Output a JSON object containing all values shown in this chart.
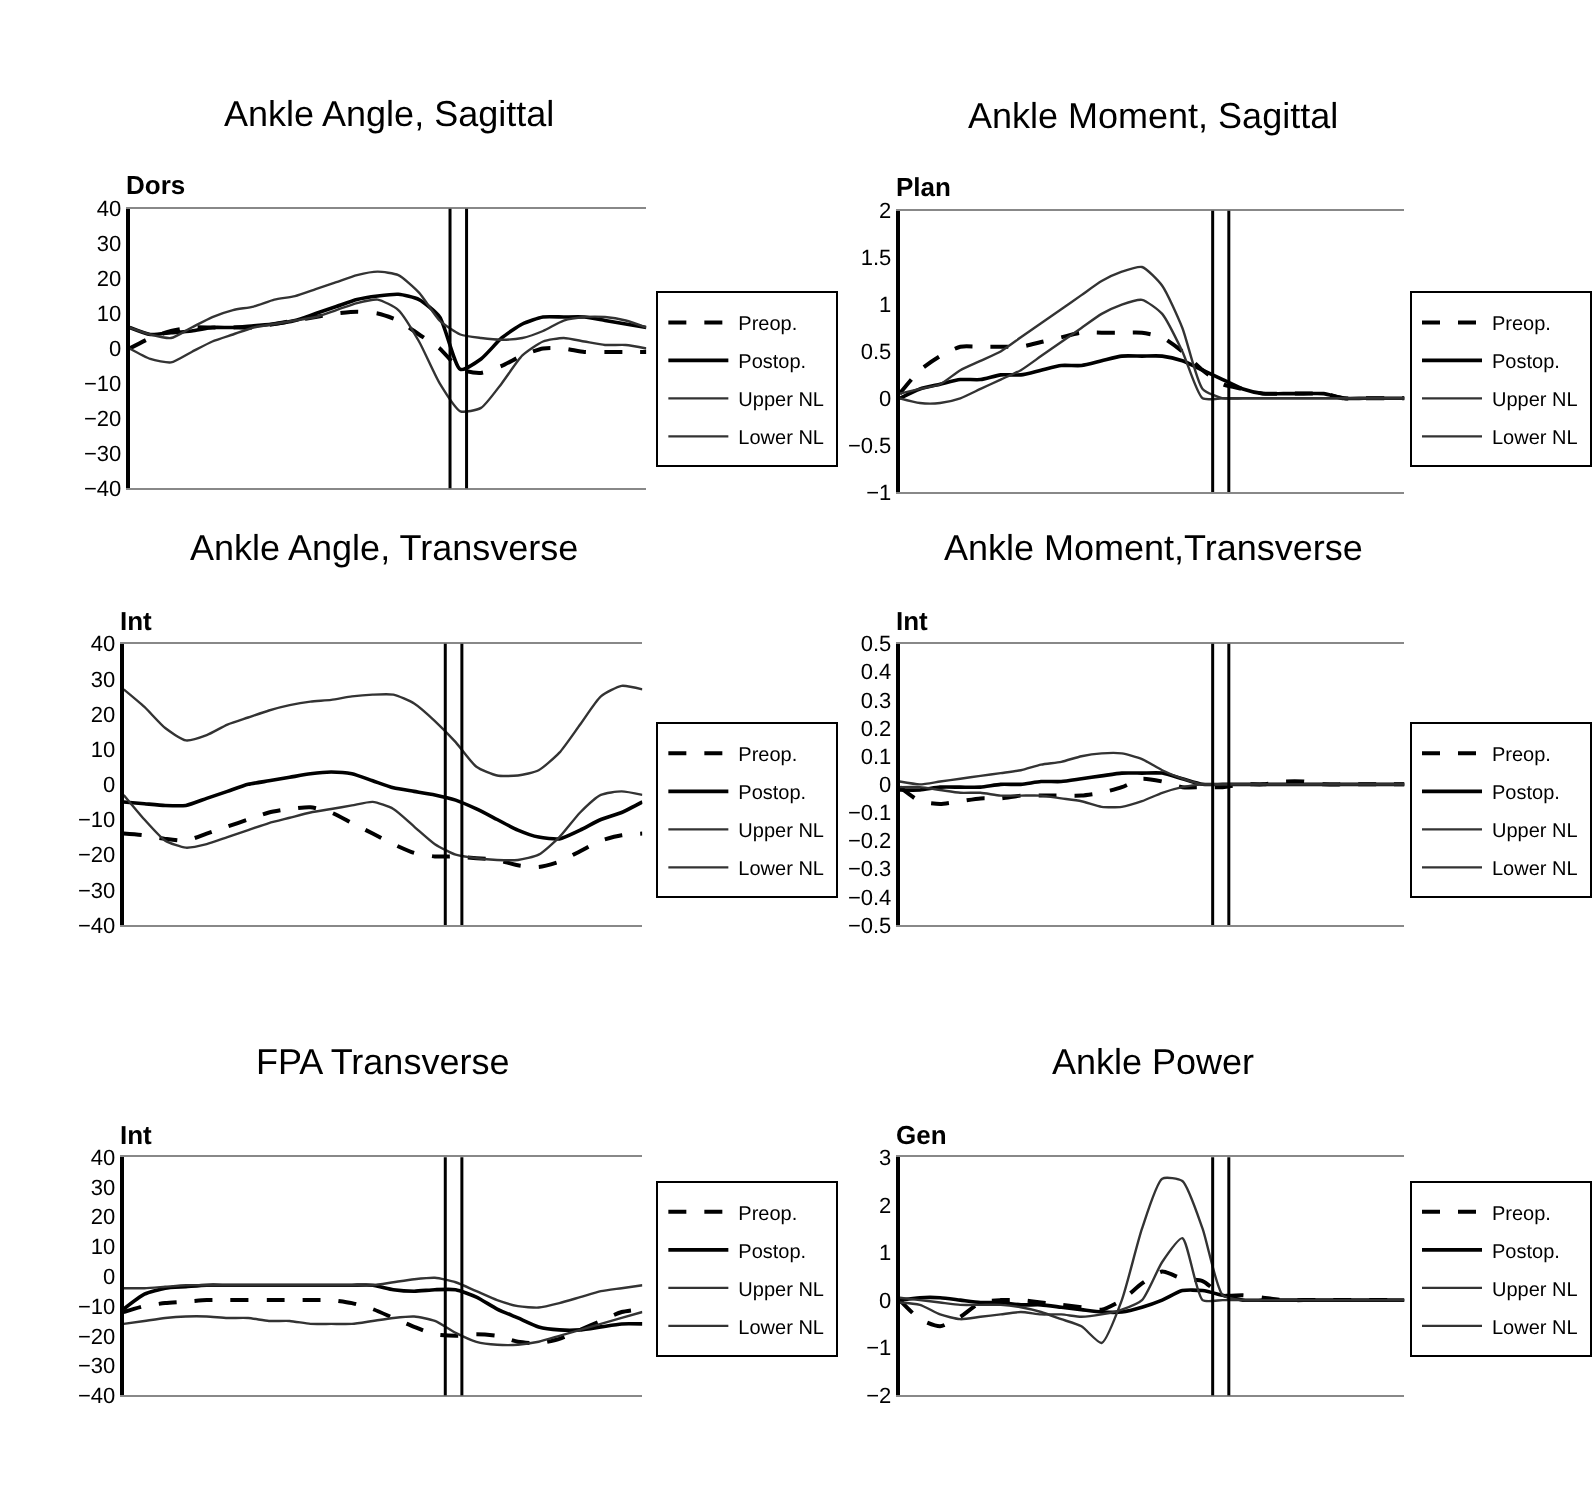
{
  "chart_data": [
    {
      "type": "line",
      "title": "Ankle Angle, Sagittal",
      "ylabel": "Dors",
      "categories": [
        null,
        null,
        null,
        null,
        null,
        null,
        null,
        null,
        null,
        null,
        null,
        null,
        null,
        null,
        null,
        null,
        null,
        null,
        null,
        null,
        null,
        null,
        null,
        null,
        null,
        null
      ],
      "ylim": [
        -40,
        40
      ],
      "yticks": [
        -40,
        -30,
        -20,
        -10,
        0,
        10,
        20,
        30,
        40
      ],
      "tick_labels": "y",
      "grid": false,
      "legend": "right",
      "series": [
        {
          "name": "Preop.",
          "color": "#000000",
          "line_style": "dashed",
          "values": [
            0,
            3,
            5,
            6,
            6,
            6,
            6,
            7,
            8,
            9,
            10,
            10.5,
            10,
            8,
            4,
            0,
            -6,
            -7,
            -5,
            -2,
            0,
            0,
            -1,
            -1,
            -1,
            -1
          ]
        },
        {
          "name": "Postop.",
          "color": "#000000",
          "line_style": "solid",
          "values": [
            6,
            4,
            4.5,
            5,
            6,
            6,
            6.5,
            7,
            8,
            10,
            12,
            14,
            15,
            15.5,
            14,
            9,
            -6,
            -3,
            3,
            7,
            9,
            9,
            9,
            8,
            7,
            6
          ]
        },
        {
          "name": "Upper NL",
          "color": "#333333",
          "line_style": "solid",
          "values": [
            6,
            4,
            3,
            6,
            9,
            11,
            12,
            14,
            15,
            17,
            19,
            21,
            22,
            21,
            16,
            8,
            4,
            3,
            2.5,
            3,
            5,
            8,
            9,
            9,
            8,
            6
          ]
        },
        {
          "name": "Lower NL",
          "color": "#333333",
          "line_style": "solid",
          "values": [
            0,
            -3,
            -4,
            -1,
            2,
            4,
            6,
            7,
            8,
            9,
            11,
            13,
            14,
            11,
            2,
            -10,
            -18,
            -17,
            -10,
            -2,
            2,
            3,
            2,
            1,
            1,
            0
          ]
        }
      ]
    },
    {
      "type": "line",
      "title": "Ankle Moment, Sagittal",
      "ylabel": "Plan",
      "categories": [
        null,
        null,
        null,
        null,
        null,
        null,
        null,
        null,
        null,
        null,
        null,
        null,
        null,
        null,
        null,
        null,
        null,
        null,
        null,
        null,
        null,
        null,
        null,
        null,
        null,
        null
      ],
      "ylim": [
        -1,
        2
      ],
      "yticks": [
        -1,
        -0.5,
        0,
        0.5,
        1,
        1.5,
        2
      ],
      "tick_labels": "y",
      "grid": false,
      "legend": "right",
      "series": [
        {
          "name": "Preop.",
          "color": "#000000",
          "line_style": "dashed",
          "values": [
            0.05,
            0.3,
            0.45,
            0.55,
            0.55,
            0.55,
            0.55,
            0.6,
            0.65,
            0.7,
            0.7,
            0.7,
            0.7,
            0.65,
            0.5,
            0.3,
            0.15,
            0.1,
            0.05,
            0.05,
            0.05,
            0.05,
            0,
            0,
            0,
            0
          ]
        },
        {
          "name": "Postop.",
          "color": "#000000",
          "line_style": "solid",
          "values": [
            0,
            0.1,
            0.15,
            0.2,
            0.2,
            0.25,
            0.25,
            0.3,
            0.35,
            0.35,
            0.4,
            0.45,
            0.45,
            0.45,
            0.4,
            0.3,
            0.2,
            0.1,
            0.05,
            0.05,
            0.05,
            0.05,
            0,
            0,
            0,
            0
          ]
        },
        {
          "name": "Upper NL",
          "color": "#333333",
          "line_style": "solid",
          "values": [
            0.05,
            0.1,
            0.15,
            0.3,
            0.4,
            0.5,
            0.65,
            0.8,
            0.95,
            1.1,
            1.25,
            1.35,
            1.4,
            1.2,
            0.75,
            0.1,
            0,
            0,
            0,
            0,
            0,
            0,
            0,
            0,
            0,
            0
          ]
        },
        {
          "name": "Lower NL",
          "color": "#333333",
          "line_style": "solid",
          "values": [
            0,
            -0.05,
            -0.05,
            0,
            0.1,
            0.2,
            0.3,
            0.45,
            0.6,
            0.75,
            0.9,
            1,
            1.05,
            0.9,
            0.5,
            0,
            0,
            0,
            0,
            0,
            0,
            0,
            0,
            0,
            0,
            0
          ]
        }
      ]
    },
    {
      "type": "line",
      "title": "Ankle Angle, Transverse",
      "ylabel": "Int",
      "categories": [
        null,
        null,
        null,
        null,
        null,
        null,
        null,
        null,
        null,
        null,
        null,
        null,
        null,
        null,
        null,
        null,
        null,
        null,
        null,
        null,
        null,
        null,
        null,
        null,
        null,
        null
      ],
      "ylim": [
        -40,
        40
      ],
      "yticks": [
        -40,
        -30,
        -20,
        -10,
        0,
        10,
        20,
        30,
        40
      ],
      "tick_labels": "y",
      "grid": false,
      "legend": "right",
      "series": [
        {
          "name": "Preop.",
          "color": "#000000",
          "line_style": "dashed",
          "values": [
            -14,
            -14.5,
            -15.5,
            -16,
            -14,
            -12,
            -10,
            -8,
            -7,
            -6.5,
            -8,
            -11,
            -14,
            -17,
            -19.5,
            -20.5,
            -20.5,
            -21,
            -21.5,
            -23,
            -23.5,
            -22,
            -19,
            -16,
            -14.5,
            -14
          ]
        },
        {
          "name": "Postop.",
          "color": "#000000",
          "line_style": "solid",
          "values": [
            -5,
            -5.5,
            -6,
            -6,
            -4,
            -2,
            0,
            1,
            2,
            3,
            3.5,
            3,
            1,
            -1,
            -2,
            -3,
            -4.5,
            -7,
            -10,
            -13,
            -15,
            -15.5,
            -13,
            -10,
            -8,
            -5
          ]
        },
        {
          "name": "Upper NL",
          "color": "#333333",
          "line_style": "solid",
          "values": [
            27,
            22,
            16,
            12.5,
            14,
            17,
            19,
            21,
            22.5,
            23.5,
            24,
            25,
            25.5,
            25.5,
            23,
            18,
            12,
            5,
            2.5,
            2.5,
            4,
            9,
            17,
            25,
            28,
            27
          ]
        },
        {
          "name": "Lower NL",
          "color": "#333333",
          "line_style": "solid",
          "values": [
            -3,
            -10,
            -16,
            -18,
            -17,
            -15,
            -13,
            -11,
            -9.5,
            -8,
            -7,
            -6,
            -5,
            -7,
            -12,
            -17,
            -20,
            -21,
            -21.5,
            -21.5,
            -20,
            -15,
            -8,
            -3,
            -2,
            -3
          ]
        }
      ]
    },
    {
      "type": "line",
      "title": "Ankle Moment,Transverse",
      "ylabel": "Int",
      "categories": [
        null,
        null,
        null,
        null,
        null,
        null,
        null,
        null,
        null,
        null,
        null,
        null,
        null,
        null,
        null,
        null,
        null,
        null,
        null,
        null,
        null,
        null,
        null,
        null,
        null,
        null
      ],
      "ylim": [
        -0.5,
        0.5
      ],
      "yticks": [
        -0.5,
        -0.4,
        -0.3,
        -0.2,
        -0.1,
        0,
        0.1,
        0.2,
        0.3,
        0.4,
        0.5
      ],
      "tick_labels": "y",
      "grid": false,
      "legend": "right",
      "series": [
        {
          "name": "Preop.",
          "color": "#000000",
          "line_style": "dashed",
          "values": [
            -0.01,
            -0.06,
            -0.07,
            -0.06,
            -0.05,
            -0.05,
            -0.04,
            -0.04,
            -0.04,
            -0.04,
            -0.03,
            -0.01,
            0.02,
            0.01,
            -0.01,
            -0.01,
            -0.01,
            0,
            0,
            0.01,
            0.01,
            0,
            0,
            0,
            0,
            0
          ]
        },
        {
          "name": "Postop.",
          "color": "#000000",
          "line_style": "solid",
          "values": [
            -0.02,
            -0.02,
            -0.01,
            -0.01,
            -0.01,
            0,
            0,
            0.01,
            0.01,
            0.02,
            0.03,
            0.04,
            0.04,
            0.04,
            0.02,
            0,
            0,
            0,
            0,
            0,
            0,
            0,
            0,
            0,
            0,
            0
          ]
        },
        {
          "name": "Upper NL",
          "color": "#333333",
          "line_style": "solid",
          "values": [
            0.01,
            0,
            0.01,
            0.02,
            0.03,
            0.04,
            0.05,
            0.07,
            0.08,
            0.1,
            0.11,
            0.11,
            0.09,
            0.05,
            0.02,
            0,
            0,
            0,
            0,
            0,
            0,
            0,
            0,
            0,
            0,
            0
          ]
        },
        {
          "name": "Lower NL",
          "color": "#333333",
          "line_style": "solid",
          "values": [
            -0.01,
            -0.01,
            -0.02,
            -0.03,
            -0.03,
            -0.04,
            -0.04,
            -0.04,
            -0.05,
            -0.06,
            -0.08,
            -0.08,
            -0.06,
            -0.03,
            -0.01,
            0,
            0,
            0,
            0,
            0,
            0,
            0,
            0,
            0,
            0,
            0
          ]
        }
      ]
    },
    {
      "type": "line",
      "title": "FPA Transverse",
      "ylabel": "Int",
      "categories": [
        null,
        null,
        null,
        null,
        null,
        null,
        null,
        null,
        null,
        null,
        null,
        null,
        null,
        null,
        null,
        null,
        null,
        null,
        null,
        null,
        null,
        null,
        null,
        null,
        null,
        null
      ],
      "ylim": [
        -40,
        40
      ],
      "yticks": [
        -40,
        -30,
        -20,
        -10,
        0,
        10,
        20,
        30,
        40
      ],
      "tick_labels": "y",
      "grid": false,
      "legend": "right",
      "series": [
        {
          "name": "Preop.",
          "color": "#000000",
          "line_style": "dashed",
          "values": [
            -12,
            -10,
            -9,
            -8.5,
            -8,
            -8,
            -8,
            -8,
            -8,
            -8,
            -8,
            -9,
            -11,
            -14,
            -17,
            -19.5,
            -20,
            -19.5,
            -20,
            -22,
            -22.5,
            -21,
            -18,
            -15,
            -12,
            -11
          ]
        },
        {
          "name": "Postop.",
          "color": "#000000",
          "line_style": "solid",
          "values": [
            -11,
            -6,
            -4,
            -3.5,
            -3,
            -3,
            -3,
            -3,
            -3,
            -3,
            -3,
            -3,
            -3,
            -4.5,
            -5,
            -4.5,
            -4.5,
            -7,
            -11,
            -14,
            -17,
            -18,
            -18,
            -17,
            -16,
            -16
          ]
        },
        {
          "name": "Upper NL",
          "color": "#333333",
          "line_style": "solid",
          "values": [
            -4,
            -4,
            -3.5,
            -3,
            -3,
            -3,
            -3,
            -3,
            -3,
            -3,
            -3,
            -3,
            -3,
            -2,
            -1,
            -0.5,
            -2,
            -5,
            -8,
            -10,
            -10.5,
            -9,
            -7,
            -5,
            -4,
            -3
          ]
        },
        {
          "name": "Lower NL",
          "color": "#333333",
          "line_style": "solid",
          "values": [
            -16,
            -15,
            -14,
            -13.5,
            -13.5,
            -14,
            -14,
            -15,
            -15,
            -16,
            -16,
            -16,
            -15,
            -14,
            -13.5,
            -15,
            -19,
            -22,
            -23,
            -23,
            -22,
            -20,
            -18,
            -16,
            -14,
            -12
          ]
        }
      ]
    },
    {
      "type": "line",
      "title": "Ankle Power",
      "ylabel": "Gen",
      "categories": [
        null,
        null,
        null,
        null,
        null,
        null,
        null,
        null,
        null,
        null,
        null,
        null,
        null,
        null,
        null,
        null,
        null,
        null,
        null,
        null,
        null,
        null,
        null,
        null,
        null,
        null
      ],
      "ylim": [
        -2,
        3
      ],
      "yticks": [
        -2,
        -1,
        0,
        1,
        2,
        3
      ],
      "tick_labels": "y",
      "grid": false,
      "legend": "right",
      "series": [
        {
          "name": "Preop.",
          "color": "#000000",
          "line_style": "dashed",
          "values": [
            0,
            -0.4,
            -0.55,
            -0.35,
            -0.05,
            0,
            0,
            -0.05,
            -0.1,
            -0.15,
            -0.2,
            0,
            0.35,
            0.6,
            0.45,
            0.4,
            0.1,
            0.1,
            0.05,
            0,
            0,
            0,
            0,
            0,
            0,
            0
          ]
        },
        {
          "name": "Postop.",
          "color": "#000000",
          "line_style": "solid",
          "values": [
            0,
            0.05,
            0.05,
            0,
            -0.05,
            -0.05,
            -0.1,
            -0.1,
            -0.15,
            -0.2,
            -0.25,
            -0.25,
            -0.15,
            0,
            0.2,
            0.2,
            0.1,
            0,
            0,
            0,
            0,
            0,
            0,
            0,
            0,
            0
          ]
        },
        {
          "name": "Upper NL",
          "color": "#333333",
          "line_style": "solid",
          "values": [
            0.05,
            0,
            -0.05,
            -0.1,
            -0.1,
            -0.1,
            -0.15,
            -0.25,
            -0.4,
            -0.55,
            -0.9,
            0,
            1.5,
            2.55,
            2.5,
            1.5,
            0.1,
            0,
            0,
            0,
            0,
            0,
            0,
            0,
            0,
            0
          ]
        },
        {
          "name": "Lower NL",
          "color": "#333333",
          "line_style": "solid",
          "values": [
            -0.05,
            -0.1,
            -0.3,
            -0.4,
            -0.35,
            -0.3,
            -0.25,
            -0.3,
            -0.3,
            -0.35,
            -0.3,
            -0.2,
            0,
            0.8,
            1.3,
            0,
            0,
            0,
            0,
            0,
            0,
            0,
            0,
            0,
            0,
            0
          ]
        }
      ]
    }
  ]
}
